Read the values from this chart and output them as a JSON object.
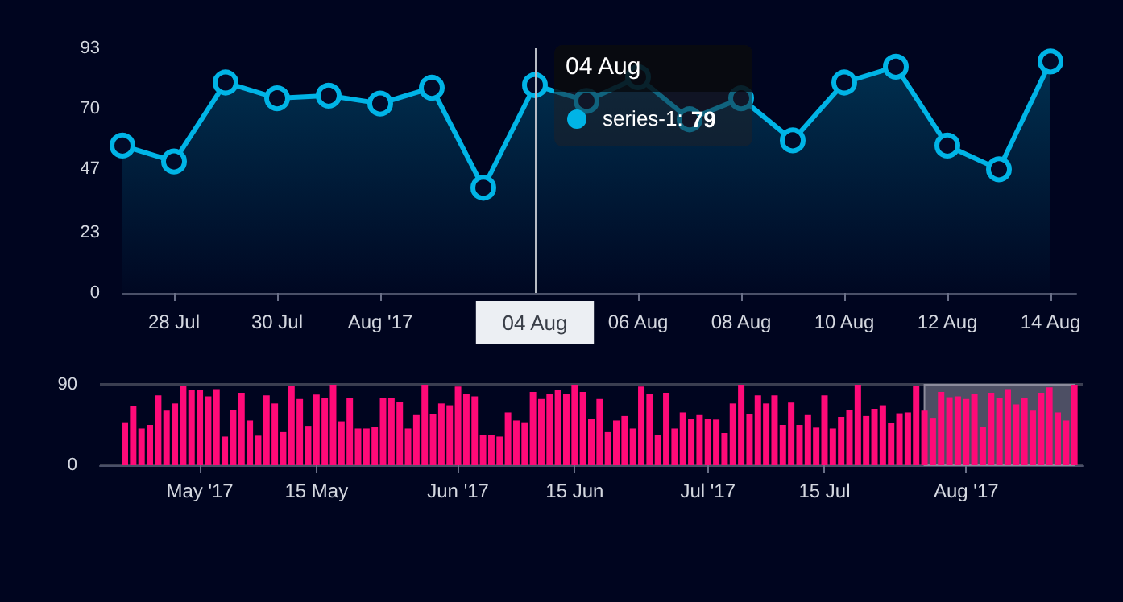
{
  "chart_data": [
    {
      "type": "area",
      "x": [
        "2017-07-27",
        "2017-07-28",
        "2017-07-29",
        "2017-07-30",
        "2017-07-31",
        "2017-08-01",
        "2017-08-02",
        "2017-08-03",
        "2017-08-04",
        "2017-08-05",
        "2017-08-06",
        "2017-08-07",
        "2017-08-08",
        "2017-08-09",
        "2017-08-10",
        "2017-08-11",
        "2017-08-12",
        "2017-08-13",
        "2017-08-14"
      ],
      "series": [
        {
          "name": "series-1",
          "color": "#00b4e6",
          "values": [
            56,
            50,
            80,
            74,
            75,
            72,
            78,
            40,
            79,
            73,
            82,
            66,
            74,
            58,
            80,
            86,
            56,
            47,
            88
          ]
        }
      ],
      "xlim": [
        "2017-07-27",
        "2017-08-14T12:00"
      ],
      "xticks": [
        {
          "value": "2017-07-28",
          "label": "28 Jul"
        },
        {
          "value": "2017-07-30",
          "label": "30 Jul"
        },
        {
          "value": "2017-08-01",
          "label": "Aug '17"
        },
        {
          "value": "2017-08-06",
          "label": "06 Aug"
        },
        {
          "value": "2017-08-08",
          "label": "08 Aug"
        },
        {
          "value": "2017-08-10",
          "label": "10 Aug"
        },
        {
          "value": "2017-08-12",
          "label": "12 Aug"
        },
        {
          "value": "2017-08-14",
          "label": "14 Aug"
        }
      ],
      "ylim": [
        0,
        93
      ],
      "yticks": [
        0,
        23,
        47,
        70,
        93
      ],
      "marker": "circle",
      "ref_lines": [
        {
          "axis": "x",
          "value": "2017-08-04",
          "label": "04 Aug",
          "color": "#b8bcc4"
        }
      ],
      "annotations": [
        {
          "text": "04 Aug",
          "x": "2017-08-04",
          "y": 79
        },
        ":",
        "79"
      ]
    },
    {
      "type": "bar",
      "x": [
        "2017-04-22",
        "2017-04-23",
        "2017-04-24",
        "2017-04-25",
        "2017-04-26",
        "2017-04-27",
        "2017-04-28",
        "2017-04-29",
        "2017-04-30",
        "2017-05-01",
        "2017-05-02",
        "2017-05-03",
        "2017-05-04",
        "2017-05-05",
        "2017-05-06",
        "2017-05-07",
        "2017-05-08",
        "2017-05-09",
        "2017-05-10",
        "2017-05-11",
        "2017-05-12",
        "2017-05-13",
        "2017-05-14",
        "2017-05-15",
        "2017-05-16",
        "2017-05-17",
        "2017-05-18",
        "2017-05-19",
        "2017-05-20",
        "2017-05-21",
        "2017-05-22",
        "2017-05-23",
        "2017-05-24",
        "2017-05-25",
        "2017-05-26",
        "2017-05-27",
        "2017-05-28",
        "2017-05-29",
        "2017-05-30",
        "2017-05-31",
        "2017-06-01",
        "2017-06-02",
        "2017-06-03",
        "2017-06-04",
        "2017-06-05",
        "2017-06-06",
        "2017-06-07",
        "2017-06-08",
        "2017-06-09",
        "2017-06-10",
        "2017-06-11",
        "2017-06-12",
        "2017-06-13",
        "2017-06-14",
        "2017-06-15",
        "2017-06-16",
        "2017-06-17",
        "2017-06-18",
        "2017-06-19",
        "2017-06-20",
        "2017-06-21",
        "2017-06-22",
        "2017-06-23",
        "2017-06-24",
        "2017-06-25",
        "2017-06-26",
        "2017-06-27",
        "2017-06-28",
        "2017-06-29",
        "2017-06-30",
        "2017-07-01",
        "2017-07-02",
        "2017-07-03",
        "2017-07-04",
        "2017-07-05",
        "2017-07-06",
        "2017-07-07",
        "2017-07-08",
        "2017-07-09",
        "2017-07-10",
        "2017-07-11",
        "2017-07-12",
        "2017-07-13",
        "2017-07-14",
        "2017-07-15",
        "2017-07-16",
        "2017-07-17",
        "2017-07-18",
        "2017-07-19",
        "2017-07-20",
        "2017-07-21",
        "2017-07-22",
        "2017-07-23",
        "2017-07-24",
        "2017-07-25",
        "2017-07-26",
        "2017-07-27",
        "2017-07-28",
        "2017-07-29",
        "2017-07-30",
        "2017-07-31",
        "2017-08-01",
        "2017-08-02",
        "2017-08-03",
        "2017-08-04",
        "2017-08-05",
        "2017-08-06",
        "2017-08-07",
        "2017-08-08",
        "2017-08-09",
        "2017-08-10",
        "2017-08-11",
        "2017-08-12",
        "2017-08-13",
        "2017-08-14"
      ],
      "series": [
        {
          "color": "#ff0a78",
          "values": [
            48,
            66,
            41,
            45,
            78,
            61,
            69,
            89,
            84,
            84,
            77,
            85,
            32,
            62,
            81,
            50,
            33,
            78,
            69,
            37,
            89,
            74,
            44,
            79,
            75,
            90,
            49,
            75,
            41,
            41,
            43,
            75,
            75,
            71,
            41,
            56,
            90,
            57,
            69,
            67,
            88,
            80,
            77,
            34,
            34,
            32,
            59,
            50,
            48,
            82,
            74,
            80,
            84,
            80,
            90,
            82,
            52,
            74,
            37,
            50,
            55,
            41,
            88,
            80,
            34,
            81,
            41,
            59,
            52,
            56,
            52,
            51,
            36,
            69,
            90,
            57,
            78,
            69,
            78,
            45,
            70,
            45,
            56,
            42,
            78,
            41,
            54,
            62,
            90,
            55,
            63,
            67,
            47,
            58,
            59,
            89,
            61,
            53,
            82,
            76,
            77,
            74,
            80,
            43,
            81,
            75,
            85,
            68,
            75,
            61,
            81,
            87,
            59,
            50,
            90
          ]
        }
      ],
      "xlim": [
        "2017-04-19",
        "2017-08-15"
      ],
      "xticks": [
        {
          "value": "2017-05-01",
          "label": "May '17"
        },
        {
          "value": "2017-05-15",
          "label": "15 May"
        },
        {
          "value": "2017-06-01",
          "label": "Jun '17"
        },
        {
          "value": "2017-06-15",
          "label": "15 Jun"
        },
        {
          "value": "2017-07-01",
          "label": "Jul '17"
        },
        {
          "value": "2017-07-15",
          "label": "15 Jul"
        },
        {
          "value": "2017-08-01",
          "label": "Aug '17"
        }
      ],
      "ylim": [
        0,
        90
      ],
      "yticks": [
        0,
        90
      ],
      "grid": "y",
      "bands": [
        {
          "axis": "x",
          "from": "2017-07-27",
          "to": "2017-08-14",
          "color": "#8c8c9c"
        }
      ]
    }
  ]
}
